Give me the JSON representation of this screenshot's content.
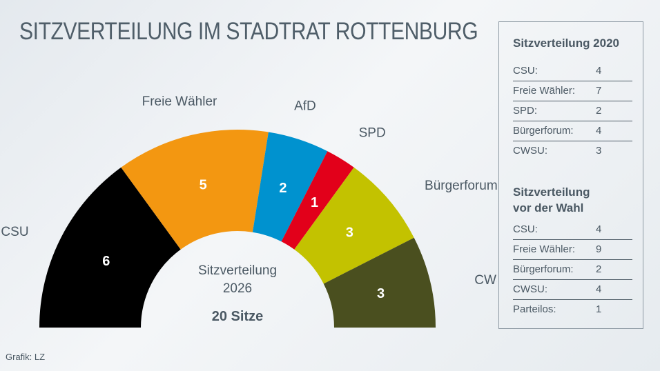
{
  "title": "SITZVERTEILUNG IM STADTRAT ROTTENBURG",
  "credit": "Grafik: LZ",
  "chart_data": {
    "type": "pie",
    "subtype": "semicircle-donut",
    "center_label": [
      "Sitzverteilung",
      "2026"
    ],
    "total_label": "20 Sitze",
    "categories": [
      "CSU",
      "Freie Wähler",
      "AfD",
      "SPD",
      "Bürgerforum",
      "CWSU"
    ],
    "values": [
      6,
      5,
      2,
      1,
      3,
      3
    ],
    "value_labels": [
      "6",
      "5",
      "2",
      "1",
      "3",
      "3"
    ],
    "colors": [
      "#000000",
      "#f39711",
      "#0092cf",
      "#e2001a",
      "#c3c200",
      "#4a4f1f"
    ]
  },
  "sidebar": {
    "sections": [
      {
        "heading": [
          "Sitzverteilung 2020"
        ],
        "rows": [
          [
            "CSU:",
            "4"
          ],
          [
            "Freie Wähler:",
            "7"
          ],
          [
            "SPD:",
            "2"
          ],
          [
            "Bürgerforum:",
            "4"
          ],
          [
            "CWSU:",
            "3"
          ]
        ]
      },
      {
        "heading": [
          "Sitzverteilung",
          "vor der Wahl"
        ],
        "rows": [
          [
            "CSU:",
            "4"
          ],
          [
            "Freie Wähler:",
            "9"
          ],
          [
            "Bürgerforum:",
            "2"
          ],
          [
            "CWSU:",
            "4"
          ],
          [
            "Parteilos:",
            "1"
          ]
        ]
      }
    ]
  }
}
